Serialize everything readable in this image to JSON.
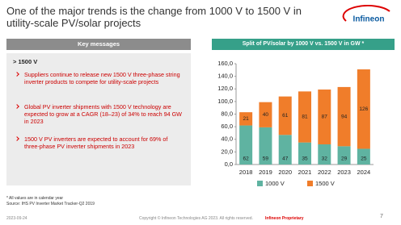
{
  "slide": {
    "title": "One of the major trends is the change from 1000 V to 1500 V in utility-scale PV/solar projects",
    "logo": "Infineon",
    "key_messages": {
      "header": "Key messages",
      "subtitle": "> 1500 V",
      "bullets": [
        "Suppliers continue to release new 1500 V three-phase string inverter products to compete for utility-scale projects",
        "Global PV inverter shipments with 1500 V technology are expected to grow at a CAGR (18–23) of 34% to reach 94 GW in 2023",
        "1500 V PV inverters are expected to account for 69% of three-phase PV inverter shipments in 2023"
      ]
    },
    "footnotes": [
      "* All values are in calendar year",
      "Source: IHS PV Inverter Market Tracker-Q2 2019"
    ],
    "footer": {
      "date": "2023-09-24",
      "copyright": "Copyright © Infineon Technologies AG 2023. All rights reserved.",
      "classification": "Infineon Proprietary",
      "page": "7"
    }
  },
  "chart_data": {
    "type": "stacked_bar",
    "title": "Split of PV/solar by 1000 V vs. 1500 V in GW *",
    "categories": [
      "2018",
      "2019",
      "2020",
      "2021",
      "2022",
      "2023",
      "2024"
    ],
    "series": [
      {
        "name": "1000 V",
        "color": "#5fb3a1",
        "values": [
          62,
          59,
          47,
          35,
          32,
          29,
          25
        ]
      },
      {
        "name": "1500 V",
        "color": "#f07d2a",
        "values": [
          21,
          40,
          61,
          81,
          87,
          94,
          126
        ]
      }
    ],
    "ylim": [
      0,
      160
    ],
    "yticks": [
      {
        "value": 0,
        "label": "0,0"
      },
      {
        "value": 20,
        "label": "20,0"
      },
      {
        "value": 40,
        "label": "40,0"
      },
      {
        "value": 60,
        "label": "60,0"
      },
      {
        "value": 80,
        "label": "80,0"
      },
      {
        "value": 100,
        "label": "100,0"
      },
      {
        "value": 120,
        "label": "120,0"
      },
      {
        "value": 140,
        "label": "140,0"
      },
      {
        "value": 160,
        "label": "160,0"
      }
    ],
    "grid": false,
    "legend": "bottom"
  }
}
